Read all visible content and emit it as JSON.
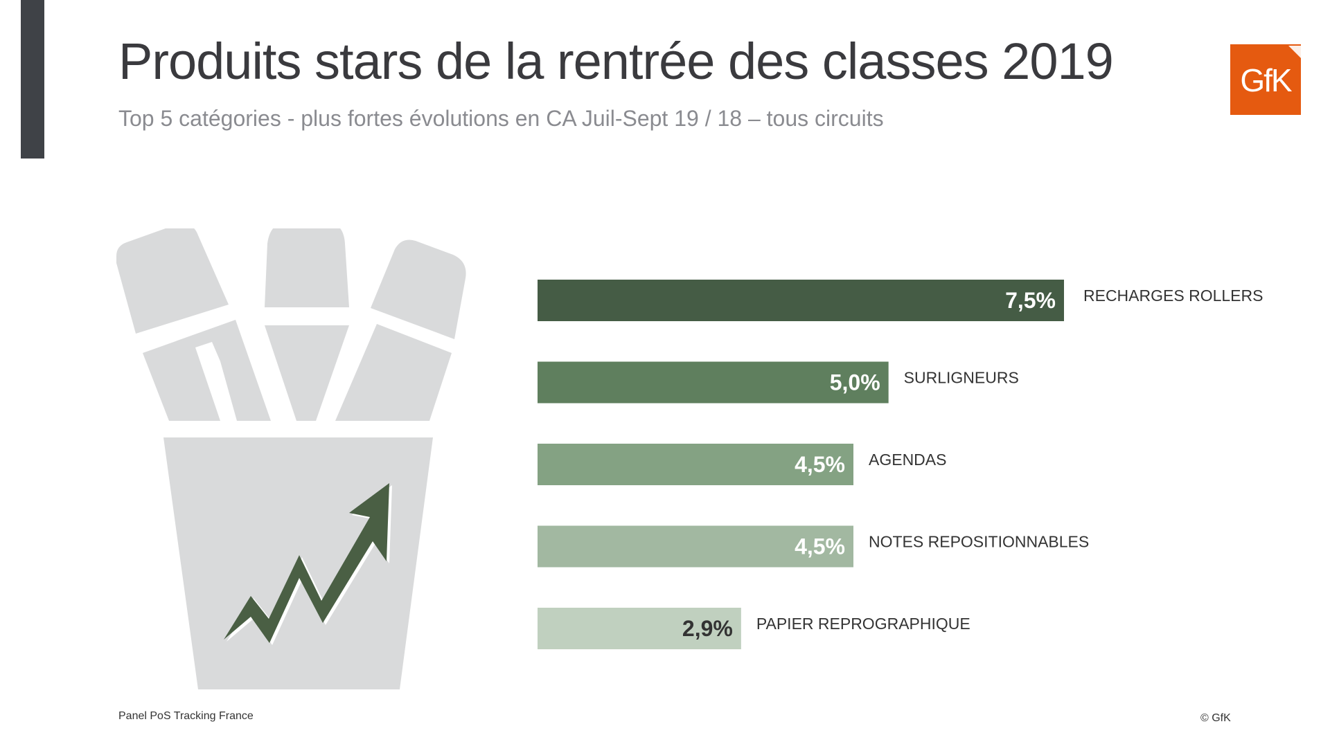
{
  "header": {
    "title": "Produits stars de la rentrée des classes 2019",
    "subtitle": "Top 5 catégories - plus fortes évolutions en CA Juil-Sept 19 / 18 – tous circuits"
  },
  "logo": {
    "text": "GfK",
    "color": "#e55a10"
  },
  "illustration": {
    "icon": "pencil-cup-growth-icon",
    "cup_color": "#d9dadb",
    "arrow_color": "#4a5f44"
  },
  "chart_data": {
    "type": "bar",
    "orientation": "horizontal",
    "categories": [
      "RECHARGES ROLLERS",
      "SURLIGNEURS",
      "AGENDAS",
      "NOTES REPOSITIONNABLES",
      "PAPIER REPROGRAPHIQUE"
    ],
    "values": [
      7.5,
      5.0,
      4.5,
      4.5,
      2.9
    ],
    "value_labels": [
      "7,5%",
      "5,0%",
      "4,5%",
      "4,5%",
      "2,9%"
    ],
    "bar_colors": [
      "#455c45",
      "#5f7f5e",
      "#84a283",
      "#a2b8a1",
      "#c0d0bf"
    ],
    "label_colors": [
      "#ffffff",
      "#ffffff",
      "#ffffff",
      "#ffffff",
      "#333333"
    ],
    "xlim": [
      0,
      7.5
    ],
    "grid": false
  },
  "footer": {
    "source": "Panel PoS Tracking France",
    "copyright": "© GfK"
  }
}
